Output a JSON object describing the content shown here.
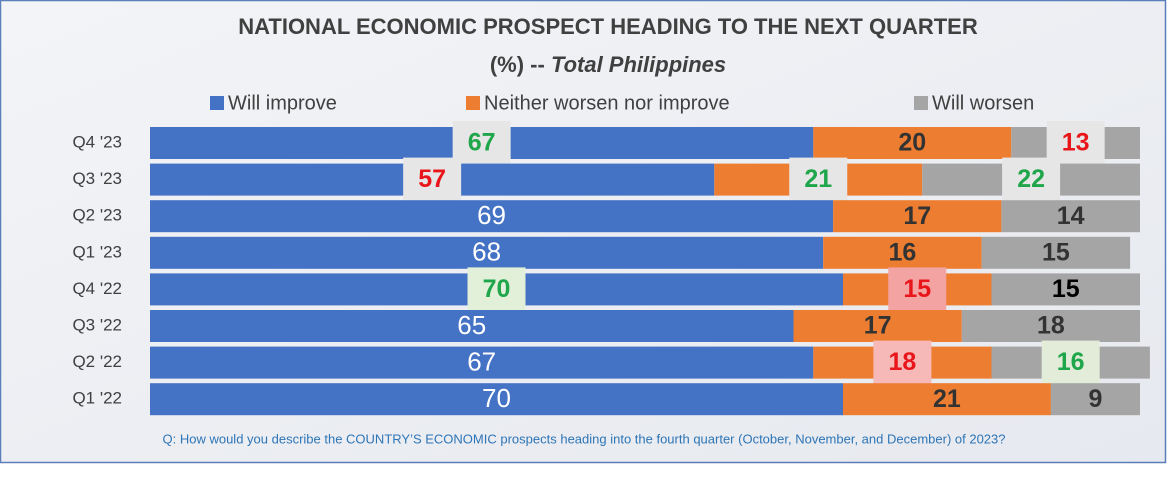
{
  "chart_data": {
    "type": "stacked_bar_horizontal",
    "title": "NATIONAL ECONOMIC PROSPECT HEADING TO THE NEXT QUARTER",
    "subtitle": "(%) --",
    "subtitle_emphasis": "Total Philippines",
    "categories": [
      "Q4 '23",
      "Q3 '23",
      "Q2 '23",
      "Q1 '23",
      "Q4 '22",
      "Q3 '22",
      "Q2 '22",
      "Q1 '22"
    ],
    "series": [
      {
        "name": "Will improve",
        "color": "#4472c4",
        "values": [
          67,
          57,
          69,
          68,
          70,
          65,
          67,
          70
        ],
        "label_colors": [
          "#1fa64a",
          "#e8161b",
          "#ffffff",
          "#ffffff",
          "#1fa64a",
          "#ffffff",
          "#ffffff",
          "#ffffff"
        ],
        "label_boxes": [
          "#e6e6e6",
          "#e6e6e6",
          null,
          null,
          "#e2f0d9",
          null,
          null,
          null
        ]
      },
      {
        "name": "Neither worsen nor improve",
        "color": "#ed7d31",
        "values": [
          20,
          21,
          17,
          16,
          15,
          17,
          18,
          21
        ],
        "label_colors": [
          "#333333",
          "#1fa64a",
          "#333333",
          "#333333",
          "#e8161b",
          "#333333",
          "#e8161b",
          "#333333"
        ],
        "label_boxes": [
          null,
          "#e6e6e6",
          null,
          null,
          "#f4a3a3",
          null,
          "#f7b8b8",
          null
        ]
      },
      {
        "name": "Will worsen",
        "color": "#a5a5a5",
        "values": [
          13,
          22,
          14,
          15,
          15,
          18,
          16,
          9
        ],
        "label_colors": [
          "#e8161b",
          "#1fa64a",
          "#333333",
          "#333333",
          "#000000",
          "#333333",
          "#1fa64a",
          "#333333"
        ],
        "label_boxes": [
          "#e6e6e6",
          "#e6e6e6",
          null,
          null,
          null,
          null,
          "#e2ecd9",
          null
        ]
      }
    ],
    "footnote": "Q: How would you describe the COUNTRY’S ECONOMIC prospects heading into the fourth quarter (October, November, and December)  of 2023?"
  }
}
